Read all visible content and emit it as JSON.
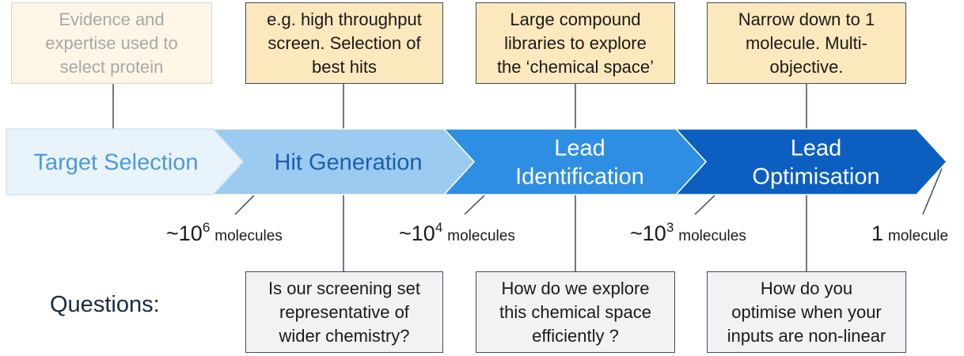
{
  "stages": [
    {
      "lines": [
        "Target Selection"
      ],
      "fill": "#e9f3fc",
      "text_color": "#4b9bd6"
    },
    {
      "lines": [
        "Hit Generation"
      ],
      "fill": "#9ccbf1",
      "text_color": "#1b5fa8"
    },
    {
      "lines": [
        "Lead",
        "Identification"
      ],
      "fill": "#2e8ee3",
      "text_color": "#ffffff"
    },
    {
      "lines": [
        "Lead",
        "Optimisation"
      ],
      "fill": "#0c5fc1",
      "text_color": "#ffffff"
    }
  ],
  "top_boxes": [
    {
      "lines": [
        "Evidence and",
        "expertise used to",
        "select protein"
      ]
    },
    {
      "lines": [
        "e.g. high throughput",
        "screen. Selection of",
        "best hits"
      ]
    },
    {
      "lines": [
        "Large compound",
        "libraries to explore",
        "the ‘chemical space’"
      ]
    },
    {
      "lines": [
        "Narrow down to 1",
        "molecule.  Multi-",
        "objective."
      ]
    }
  ],
  "counts": [
    {
      "base": "~10",
      "exponent": "6",
      "unit": "molecules"
    },
    {
      "base": "~10",
      "exponent": "4",
      "unit": "molecules"
    },
    {
      "base": "~10",
      "exponent": "3",
      "unit": "molecules"
    },
    {
      "base": "1",
      "exponent": "",
      "unit": "molecule"
    }
  ],
  "questions_label": "Questions:",
  "bottom_boxes": [
    {
      "lines": [
        "Is our screening set",
        "representative of",
        "wider chemistry?"
      ]
    },
    {
      "lines": [
        "How do we explore",
        "this chemical space",
        "efficiently ?"
      ]
    },
    {
      "lines": [
        "How do you",
        "optimise when your",
        "inputs are non-linear"
      ]
    }
  ],
  "colors": {
    "border": "#3f4c5c",
    "top_box_fill": "#fce8bd",
    "top_box_faded_fill": "#fdf5e6",
    "bottom_box_fill": "#f1f2f4"
  }
}
